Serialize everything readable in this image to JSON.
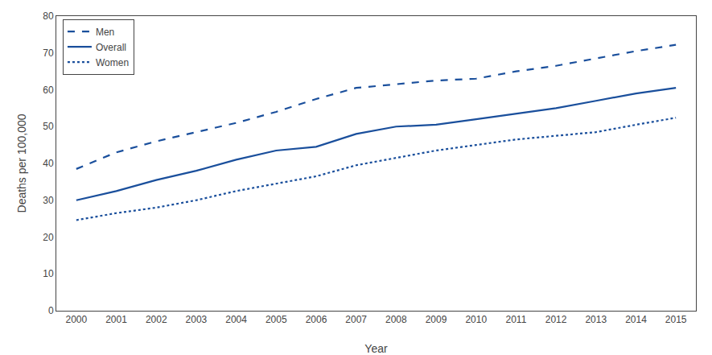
{
  "chart_data": {
    "type": "line",
    "x": [
      2000,
      2001,
      2002,
      2003,
      2004,
      2005,
      2006,
      2007,
      2008,
      2009,
      2010,
      2011,
      2012,
      2013,
      2014,
      2015
    ],
    "series": [
      {
        "name": "Men",
        "color": "#1a4f9c",
        "line_style": "dashed",
        "values": [
          38.5,
          43.0,
          46.0,
          48.5,
          51.0,
          54.0,
          57.5,
          60.5,
          61.5,
          62.5,
          63.0,
          65.0,
          66.5,
          68.5,
          70.5,
          72.2
        ]
      },
      {
        "name": "Overall",
        "color": "#1a4f9c",
        "line_style": "solid",
        "values": [
          30.0,
          32.5,
          35.5,
          38.0,
          41.0,
          43.5,
          44.5,
          48.0,
          50.0,
          50.5,
          52.0,
          53.5,
          55.0,
          57.0,
          59.0,
          60.5
        ]
      },
      {
        "name": "Women",
        "color": "#1a4f9c",
        "line_style": "dotted",
        "values": [
          24.6,
          26.5,
          28.0,
          30.0,
          32.5,
          34.5,
          36.5,
          39.5,
          41.5,
          43.5,
          45.0,
          46.5,
          47.5,
          48.5,
          50.5,
          52.4
        ]
      }
    ],
    "xlabel": "Year",
    "ylabel": "Deaths per 100,000",
    "xlim": [
      1999.5,
      2015.5
    ],
    "xticks": [
      2000,
      2001,
      2002,
      2003,
      2004,
      2005,
      2006,
      2007,
      2008,
      2009,
      2010,
      2011,
      2012,
      2013,
      2014,
      2015
    ],
    "ylim": [
      0,
      80
    ],
    "yticks": [
      0,
      10,
      20,
      30,
      40,
      50,
      60,
      70,
      80
    ],
    "grid": false,
    "legend": "upper left"
  }
}
